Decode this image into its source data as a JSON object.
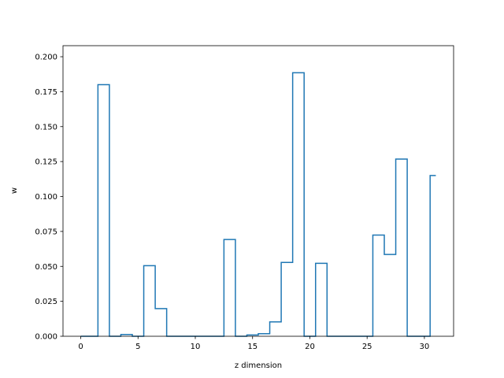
{
  "chart_data": {
    "type": "line",
    "drawstyle": "steps-mid",
    "title": "",
    "xlabel": "z dimension",
    "ylabel": "w",
    "xlim": [
      -1.55,
      32.55
    ],
    "ylim": [
      0,
      0.2079
    ],
    "xticks": [
      0,
      5,
      10,
      15,
      20,
      25,
      30
    ],
    "yticks": [
      0.0,
      0.025,
      0.05,
      0.075,
      0.1,
      0.125,
      0.15,
      0.175,
      0.2
    ],
    "ytick_labels": [
      "0.000",
      "0.025",
      "0.050",
      "0.075",
      "0.100",
      "0.125",
      "0.150",
      "0.175",
      "0.200"
    ],
    "grid": false,
    "color": "#1f77b4",
    "x": [
      0,
      1,
      2,
      3,
      4,
      5,
      6,
      7,
      8,
      9,
      10,
      11,
      12,
      13,
      14,
      15,
      16,
      17,
      18,
      19,
      20,
      21,
      22,
      23,
      24,
      25,
      26,
      27,
      28,
      29,
      30,
      31
    ],
    "y": [
      0.0,
      0.0,
      0.18,
      0.0,
      0.0013,
      0.0,
      0.0505,
      0.0198,
      0.0,
      0.0,
      0.0,
      0.0,
      0.0,
      0.0692,
      0.0,
      0.0009,
      0.0018,
      0.0103,
      0.0528,
      0.1885,
      0.0,
      0.0522,
      0.0,
      0.0,
      0.0,
      0.0,
      0.0724,
      0.0585,
      0.1268,
      0.0,
      0.0,
      0.115
    ]
  }
}
